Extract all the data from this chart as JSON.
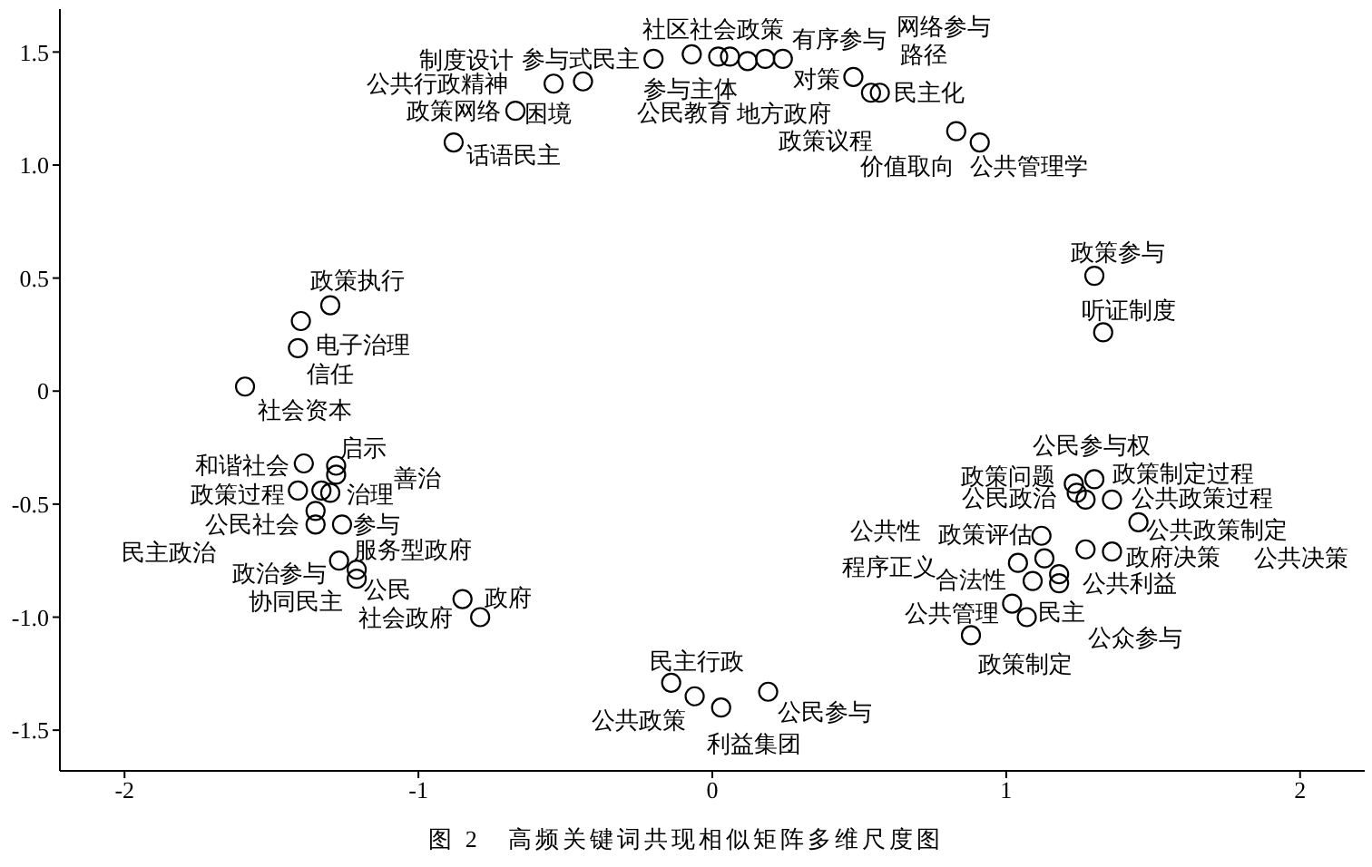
{
  "chart_data": {
    "type": "scatter",
    "marker": "circle",
    "grid": false,
    "legend": false,
    "xlim": [
      -2.22,
      2.22
    ],
    "ylim": [
      -1.68,
      1.69
    ],
    "xticks": [
      -2,
      -1,
      0,
      1,
      2
    ],
    "yticks": [
      {
        "value": -1.5,
        "label": "-1.5"
      },
      {
        "value": -1,
        "label": "-1.0"
      },
      {
        "value": -0.5,
        "label": "-0.5"
      },
      0,
      {
        "value": 0.5,
        "label": "0.5"
      },
      {
        "value": 1,
        "label": "1.0"
      },
      {
        "value": 1.5,
        "label": "1.5"
      }
    ],
    "series": [
      {
        "color": "#000000",
        "x": [
          -0.88,
          -0.67,
          -0.54,
          -0.44,
          -0.2,
          -0.07,
          0.02,
          0.06,
          0.12,
          0.18,
          0.24,
          0.48,
          0.54,
          0.57,
          0.83,
          0.91,
          1.3,
          1.33,
          1.23,
          1.3,
          1.24,
          1.27,
          1.36,
          1.45,
          1.12,
          1.27,
          1.36,
          1.13,
          1.04,
          1.18,
          1.09,
          1.18,
          1.02,
          1.07,
          0.88,
          -1.3,
          -1.4,
          -1.41,
          -1.59,
          -1.39,
          -1.28,
          -1.28,
          -1.41,
          -1.33,
          -1.3,
          -1.35,
          -1.35,
          -1.26,
          -1.27,
          -1.21,
          -1.21,
          -0.85,
          -0.79,
          -0.14,
          -0.06,
          0.03,
          0.19
        ],
        "values": [
          1.1,
          1.24,
          1.36,
          1.37,
          1.47,
          1.49,
          1.48,
          1.48,
          1.46,
          1.47,
          1.47,
          1.39,
          1.32,
          1.32,
          1.15,
          1.1,
          0.51,
          0.26,
          -0.41,
          -0.39,
          -0.45,
          -0.48,
          -0.48,
          -0.58,
          -0.64,
          -0.7,
          -0.71,
          -0.74,
          -0.76,
          -0.81,
          -0.84,
          -0.85,
          -0.94,
          -1.0,
          -1.08,
          0.38,
          0.31,
          0.19,
          0.02,
          -0.32,
          -0.33,
          -0.37,
          -0.44,
          -0.44,
          -0.45,
          -0.53,
          -0.59,
          -0.59,
          -0.75,
          -0.79,
          -0.83,
          -0.92,
          -1.0,
          -1.29,
          -1.35,
          -1.4,
          -1.33
        ]
      }
    ],
    "annotations": [
      {
        "text": "制度设计",
        "x": -0.44,
        "y": 1.37
      },
      {
        "text": "参与式民主",
        "x": -0.2,
        "y": 1.47
      },
      {
        "text": "社区社会政策",
        "x": -0.07,
        "y": 1.49
      },
      {
        "text": "有序参与",
        "x": 0.18,
        "y": 1.47
      },
      {
        "text": "路径",
        "x": 0.54,
        "y": 1.32
      },
      {
        "text": "公共行政精神",
        "x": -0.54,
        "y": 1.36
      },
      {
        "text": "政策网络",
        "x": -0.67,
        "y": 1.24
      },
      {
        "text": "参与主体",
        "x": 0.02,
        "y": 1.48
      },
      {
        "text": "公民教育",
        "x": 0.06,
        "y": 1.48
      },
      {
        "text": "地方政府",
        "x": 0.12,
        "y": 1.46
      },
      {
        "text": "对策",
        "x": 0.48,
        "y": 1.39
      },
      {
        "text": "民主化",
        "x": 0.57,
        "y": 1.32
      },
      {
        "text": "话语民主",
        "x": -0.88,
        "y": 1.1
      },
      {
        "text": "公共管理学",
        "x": 0.91,
        "y": 1.1
      },
      {
        "text": "政策参与",
        "x": 1.3,
        "y": 0.51
      },
      {
        "text": "听证制度",
        "x": 1.33,
        "y": 0.26
      },
      {
        "text": "公民参与权",
        "x": 1.23,
        "y": -0.41
      },
      {
        "text": "政策问题",
        "x": 1.24,
        "y": -0.45
      },
      {
        "text": "公民政治",
        "x": 1.27,
        "y": -0.48
      },
      {
        "text": "政策制定过程",
        "x": 1.3,
        "y": -0.39
      },
      {
        "text": "公共政策过程",
        "x": 1.36,
        "y": -0.48
      },
      {
        "text": "公共政策制定",
        "x": 1.45,
        "y": -0.58
      },
      {
        "text": "政策评估",
        "x": 1.12,
        "y": -0.64
      },
      {
        "text": "合法性",
        "x": 1.09,
        "y": -0.84
      },
      {
        "text": "政府决策",
        "x": 1.36,
        "y": -0.71
      },
      {
        "text": "公共利益",
        "x": 1.18,
        "y": -0.85
      },
      {
        "text": "民主",
        "x": 1.07,
        "y": -1.0
      },
      {
        "text": "公共管理",
        "x": 1.02,
        "y": -0.94
      },
      {
        "text": "政策制定",
        "x": 0.88,
        "y": -1.08
      },
      {
        "text": "公众参与",
        "x": 1.18,
        "y": -0.81
      },
      {
        "text": "政策执行",
        "x": -1.3,
        "y": 0.38
      },
      {
        "text": "电子治理",
        "x": -1.4,
        "y": 0.31
      },
      {
        "text": "信任",
        "x": -1.41,
        "y": 0.19
      },
      {
        "text": "社会资本",
        "x": -1.59,
        "y": 0.02
      },
      {
        "text": "和谐社会",
        "x": -1.39,
        "y": -0.32
      },
      {
        "text": "启示",
        "x": -1.28,
        "y": -0.33
      },
      {
        "text": "善治",
        "x": -1.28,
        "y": -0.37
      },
      {
        "text": "政策过程",
        "x": -1.41,
        "y": -0.44
      },
      {
        "text": "治理",
        "x": -1.3,
        "y": -0.45
      },
      {
        "text": "公民社会",
        "x": -1.35,
        "y": -0.59
      },
      {
        "text": "参与",
        "x": -1.26,
        "y": -0.59
      },
      {
        "text": "政治参与",
        "x": -1.27,
        "y": -0.75
      },
      {
        "text": "服务型政府",
        "x": -1.21,
        "y": -0.79
      },
      {
        "text": "公民",
        "x": -1.21,
        "y": -0.83
      },
      {
        "text": "社会政府",
        "x": -0.79,
        "y": -1.0
      },
      {
        "text": "政府",
        "x": -0.85,
        "y": -0.92
      },
      {
        "text": "民主行政",
        "x": -0.14,
        "y": -1.29
      },
      {
        "text": "公共政策",
        "x": -0.06,
        "y": -1.35
      },
      {
        "text": "利益集团",
        "x": 0.03,
        "y": -1.4
      },
      {
        "text": "公民参与",
        "x": 0.19,
        "y": -1.33
      },
      "网络参与",
      "政策议程",
      "公共性",
      "程序正义",
      "公共决策",
      "民主政治",
      "协同民主",
      "困境",
      "价值取向",
      "图 2　高频关键词共现相似矩阵多维尺度图"
    ]
  }
}
